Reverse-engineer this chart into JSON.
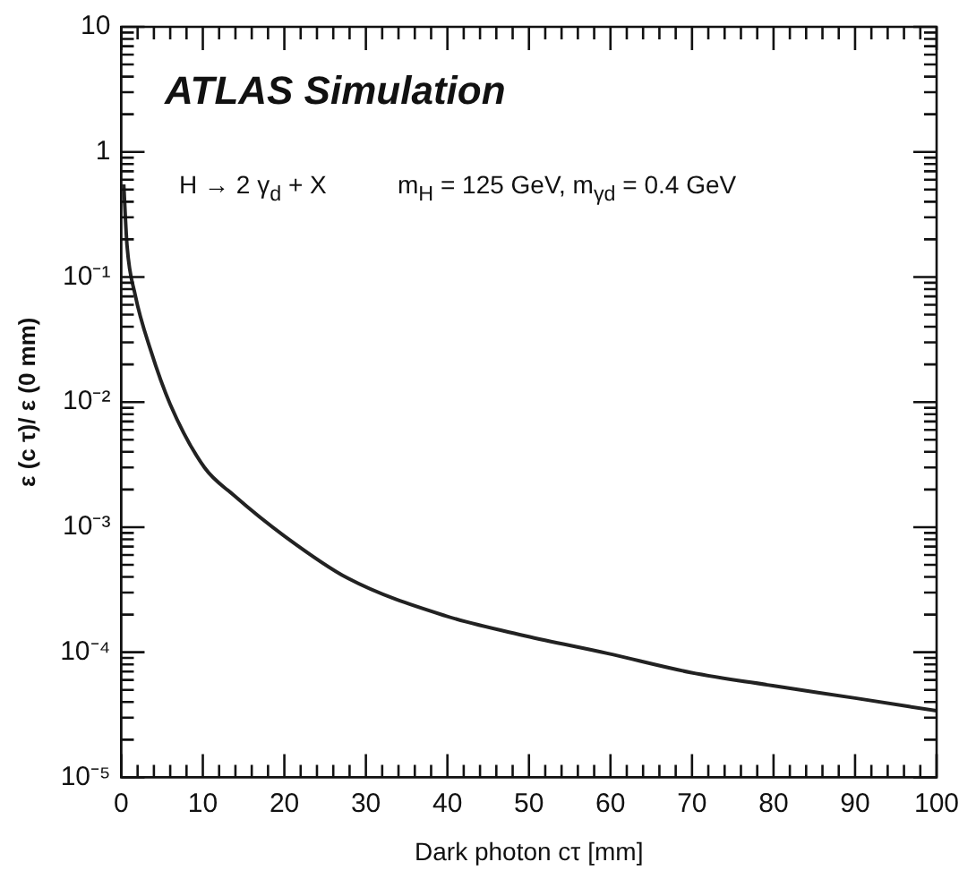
{
  "chart_data": {
    "type": "line",
    "xlabel": "Dark photon cτ [mm]",
    "ylabel": "ε (c τ)/ ε (0 mm)",
    "annotations": [
      "ATLAS Simulation",
      "H → 2 γ$_{d}$ + X",
      "m$_{H}$ = 125 GeV, m$_{γd}$ = 0.4 GeV"
    ],
    "x": [
      0.3,
      0.7,
      1.7,
      3.6,
      6.0,
      10.2,
      13.8,
      20,
      27.8,
      39.8,
      49.6,
      59.6,
      69.8,
      79.9,
      90,
      100
    ],
    "series": [
      {
        "color": "#222222",
        "values": [
          0.55,
          0.18,
          0.072,
          0.026,
          0.0096,
          0.003,
          0.0018,
          0.00085,
          0.00039,
          0.000195,
          0.000135,
          9.8e-05,
          6.9e-05,
          5.4e-05,
          4.3e-05,
          3.4e-05
        ]
      }
    ],
    "log": "y",
    "xlim": [
      0,
      100
    ],
    "xticks": [
      0,
      10,
      20,
      30,
      40,
      50,
      60,
      70,
      80,
      90,
      100
    ],
    "ylim": [
      1e-05,
      10
    ],
    "yticks": [
      {
        "value": 1e-05,
        "label": "10⁻⁵"
      },
      {
        "value": 0.0001,
        "label": "10⁻⁴"
      },
      {
        "value": 0.001,
        "label": "10⁻³"
      },
      {
        "value": 0.01,
        "label": "10⁻²"
      },
      {
        "value": 0.1,
        "label": "10⁻¹"
      },
      1,
      10
    ],
    "grid": false,
    "legend": false,
    "marker": "none",
    "line_style": "solid"
  }
}
